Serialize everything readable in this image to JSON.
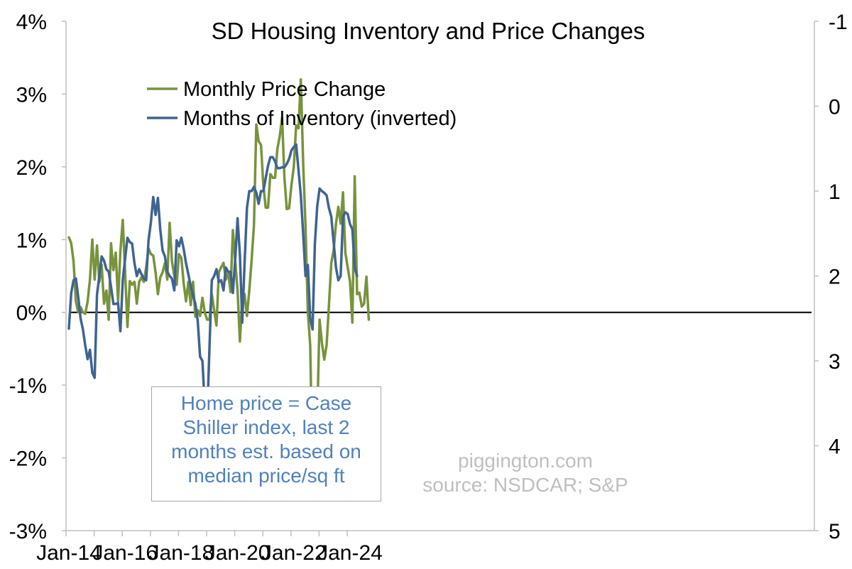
{
  "chart_data": {
    "type": "line",
    "title": "SD Housing Inventory and Price Changes",
    "x_tick_labels": [
      "Jan-14",
      "Jan-16",
      "Jan-18",
      "Jan-20",
      "Jan-22",
      "Jan-24"
    ],
    "y_left": {
      "ylim": [
        -3,
        4
      ],
      "ticks": [
        "-3%",
        "-2%",
        "-1%",
        "0%",
        "1%",
        "2%",
        "3%",
        "4%"
      ]
    },
    "y_right": {
      "ylim": [
        5,
        -1
      ],
      "inverted": true,
      "ticks": [
        "-1",
        "0",
        "1",
        "2",
        "3",
        "4",
        "5"
      ]
    },
    "legend_position": "top-left",
    "series": [
      {
        "name": "Monthly Price Change",
        "color": "#77933c",
        "axis": "left",
        "unit": "%",
        "values": [
          1.03,
          0.95,
          0.7,
          0.15,
          0.0,
          0.07,
          0.0,
          -0.02,
          0.15,
          0.45,
          1.0,
          0.45,
          0.92,
          0.42,
          0.65,
          0.12,
          0.3,
          -0.1,
          0.95,
          0.58,
          0.82,
          0.15,
          0.85,
          1.27,
          0.55,
          -0.2,
          0.43,
          0.38,
          0.42,
          0.12,
          0.42,
          0.48,
          0.42,
          0.62,
          0.88,
          0.8,
          0.78,
          0.55,
          0.25,
          0.48,
          0.55,
          0.68,
          0.45,
          1.23,
          0.7,
          0.5,
          0.38,
          0.8,
          0.75,
          0.4,
          0.15,
          0.42,
          0.1,
          0.42,
          -0.06,
          0.03,
          -0.05,
          0.2,
          0.0,
          -0.1,
          -0.1,
          0.25,
          0.03,
          -0.18,
          0.55,
          0.62,
          0.68,
          0.45,
          0.55,
          0.28,
          1.13,
          0.7,
          0.3,
          -0.4,
          0.18,
          0.25,
          -0.05,
          0.3,
          0.72,
          1.2,
          2.58,
          2.35,
          2.3,
          1.75,
          1.44,
          1.44,
          1.9,
          1.85,
          1.85,
          2.25,
          2.42,
          2.68,
          1.85,
          1.42,
          1.43,
          1.75,
          2.0,
          2.57,
          2.53,
          3.2,
          2.05,
          1.18,
          0.0,
          -0.45,
          -2.17,
          -1.85,
          -1.45,
          -0.1,
          -0.42,
          -0.65,
          -0.45,
          0.1,
          0.68,
          0.85,
          1.22,
          1.45,
          1.22,
          1.65,
          0.82,
          0.62,
          0.42,
          -0.14,
          1.87,
          0.25,
          0.27,
          0.08,
          0.12,
          0.49,
          -0.1
        ]
      },
      {
        "name": "Months of Inventory (inverted)",
        "color": "#3f6391",
        "axis": "right",
        "unit": "months",
        "values": [
          2.62,
          2.2,
          2.05,
          2.03,
          2.25,
          2.5,
          2.63,
          2.82,
          2.98,
          2.87,
          3.14,
          3.2,
          2.22,
          2.0,
          1.77,
          1.82,
          1.92,
          1.95,
          2.13,
          2.33,
          2.33,
          2.32,
          2.65,
          2.05,
          1.8,
          1.55,
          1.6,
          1.62,
          1.85,
          2.0,
          1.92,
          1.98,
          2.03,
          2.05,
          1.58,
          1.37,
          1.07,
          1.28,
          1.08,
          1.45,
          1.7,
          1.77,
          1.95,
          2.0,
          2.03,
          2.17,
          1.58,
          1.65,
          1.55,
          1.68,
          1.85,
          1.98,
          2.12,
          2.23,
          2.33,
          2.53,
          2.95,
          3.0,
          3.53,
          3.68,
          2.85,
          2.05,
          2.0,
          1.92,
          2.07,
          2.05,
          2.17,
          1.9,
          1.95,
          1.95,
          2.2,
          1.8,
          1.32,
          1.75,
          2.55,
          1.85,
          1.2,
          1.0,
          1.0,
          0.95,
          1.02,
          1.15,
          1.0,
          1.0,
          0.85,
          0.7,
          0.6,
          0.6,
          0.65,
          0.73,
          0.73,
          0.72,
          0.72,
          0.68,
          0.62,
          0.52,
          0.48,
          0.45,
          0.75,
          1.05,
          1.5,
          2.0,
          1.87,
          2.5,
          2.63,
          1.62,
          1.18,
          0.97,
          1.0,
          1.02,
          1.05,
          1.2,
          1.3,
          1.6,
          1.9,
          2.05,
          2.0,
          1.3,
          1.25,
          1.27,
          1.39,
          1.45,
          1.9,
          2.0
        ]
      }
    ],
    "annotation_box": [
      "Home price = Case",
      "Shiller index, last 2",
      "months est. based on",
      "median price/sq ft"
    ],
    "watermark": [
      "piggington.com",
      "source: NSDCAR; S&P"
    ]
  }
}
